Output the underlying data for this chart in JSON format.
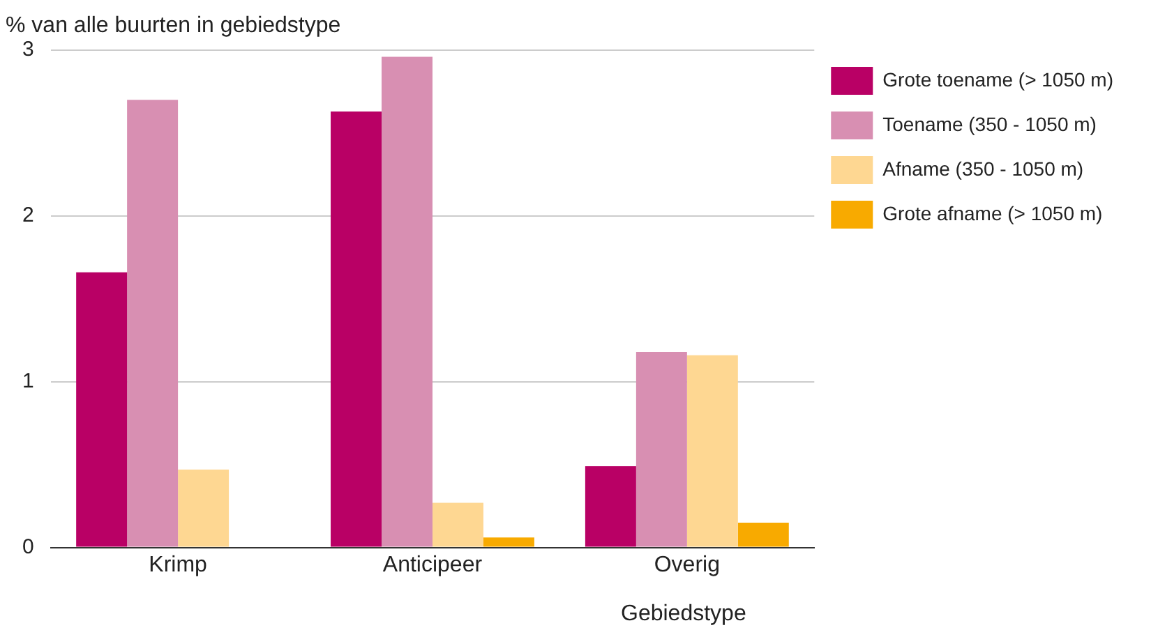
{
  "chart_data": {
    "type": "bar",
    "ylabel": "% van alle buurten in gebiedstype",
    "xlabel": "Gebiedstype",
    "categories": [
      "Krimp",
      "Anticipeer",
      "Overig"
    ],
    "series": [
      {
        "name": "Grote toename (> 1050 m)",
        "color": "#b90065",
        "values": [
          1.66,
          2.63,
          0.49
        ]
      },
      {
        "name": "Toename (350 - 1050 m)",
        "color": "#d88fb2",
        "values": [
          2.7,
          2.96,
          1.18
        ]
      },
      {
        "name": "Afname (350 - 1050 m)",
        "color": "#fed792",
        "values": [
          0.47,
          0.27,
          1.16
        ]
      },
      {
        "name": "Grote afname (> 1050 m)",
        "color": "#f8aa00",
        "values": [
          0,
          0.06,
          0.15
        ]
      }
    ],
    "ylim": [
      0,
      3
    ],
    "yticks": [
      0,
      1,
      2,
      3
    ],
    "grid": "y",
    "legend": "top right"
  }
}
